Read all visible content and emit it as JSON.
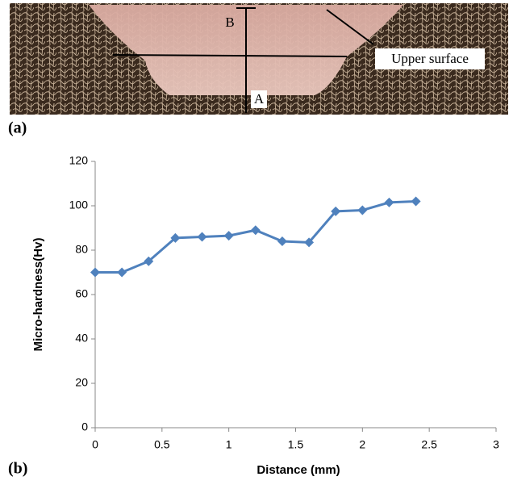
{
  "panels": {
    "a": {
      "label": "(a)",
      "annotations": [
        "B",
        "A",
        "Upper surface"
      ]
    },
    "b": {
      "label": "(b)"
    }
  },
  "chart_data": {
    "type": "line",
    "x_label": "Distance (mm)",
    "y_label": "Micro-hardness(Hv)",
    "x": [
      0,
      0.2,
      0.4,
      0.6,
      0.8,
      1,
      1.2,
      1.4,
      1.6,
      1.8,
      2,
      2.2,
      2.4
    ],
    "series": [
      {
        "color": "#4f81bd",
        "values": [
          70,
          70,
          75,
          85.5,
          86,
          86.5,
          89,
          84,
          83.5,
          97.5,
          98,
          101.5,
          102
        ]
      }
    ],
    "xlim": [
      0,
      3
    ],
    "xticks": [
      0,
      0.5,
      1,
      1.5,
      2,
      2.5,
      3
    ],
    "ylim": [
      0,
      120
    ],
    "yticks": [
      0,
      20,
      40,
      60,
      80,
      100,
      120
    ],
    "grid": false,
    "marker": "diamond"
  }
}
